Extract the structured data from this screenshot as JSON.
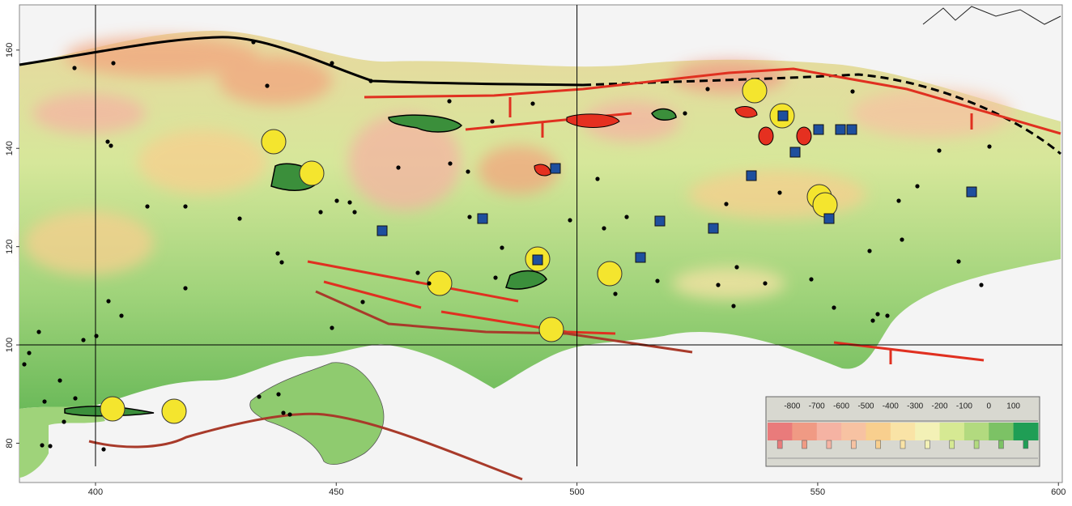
{
  "map": {
    "xlim": [
      384.2,
      600.8
    ],
    "ylim": [
      72,
      169.2
    ],
    "xticks": [
      400,
      450,
      500,
      550,
      600
    ],
    "yticks": [
      80,
      100,
      120,
      140,
      160
    ],
    "grid_x": [
      400,
      500
    ],
    "grid_y": [
      100
    ],
    "legend": {
      "labels": [
        -800,
        -700,
        -600,
        -500,
        -400,
        -300,
        -200,
        -100,
        0,
        100
      ],
      "colors": [
        "#e97b7b",
        "#f09a84",
        "#f5b3a3",
        "#f7c2a2",
        "#f8cf8e",
        "#f9e3a6",
        "#f3f1b6",
        "#d6e993",
        "#b2da7f",
        "#7cc265",
        "#1f9e55"
      ]
    }
  }
}
